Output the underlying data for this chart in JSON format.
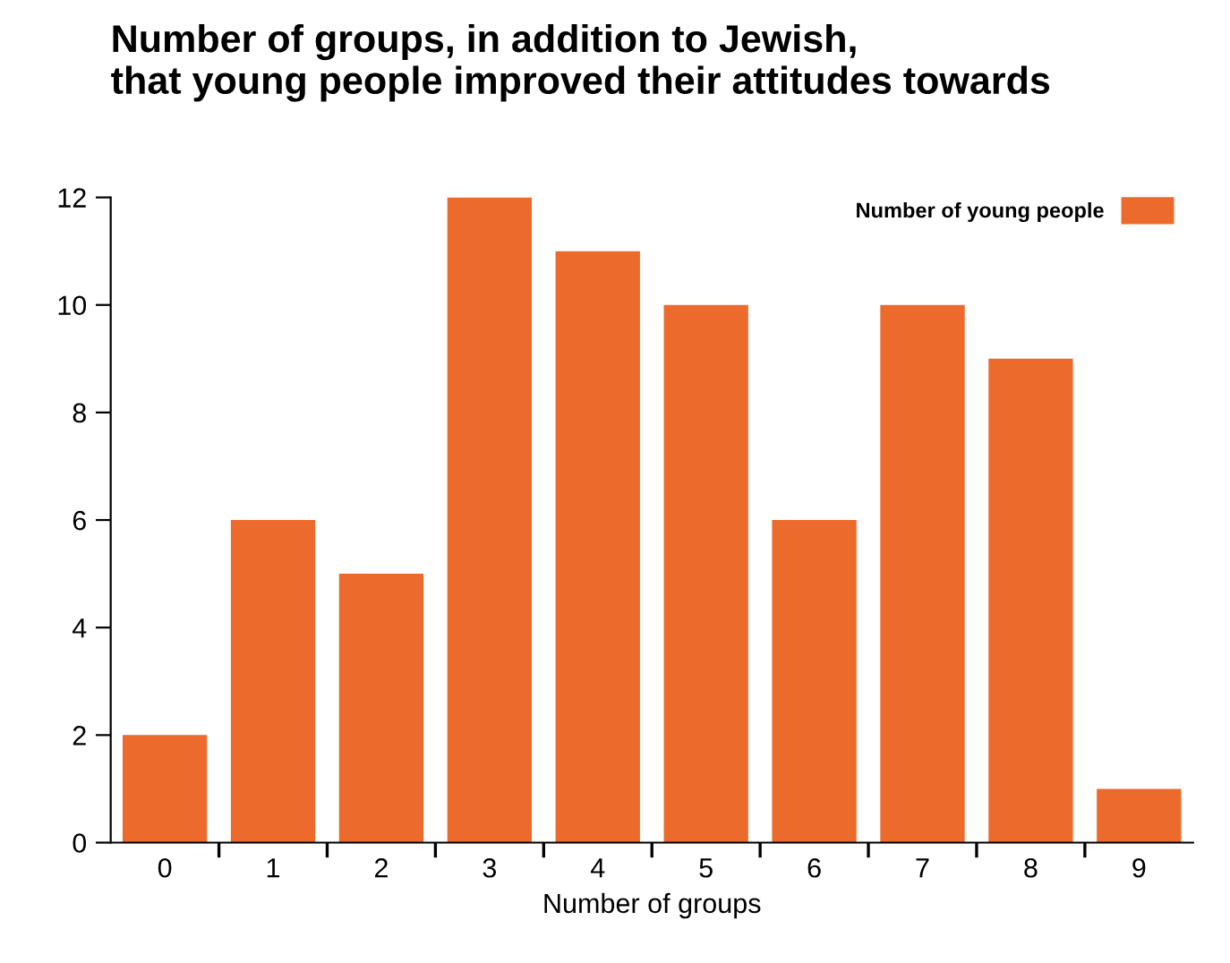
{
  "chart_data": {
    "type": "bar",
    "title": "Number of groups, in addition to Jewish,\nthat young people improved their attitudes towards",
    "xlabel": "Number of groups",
    "categories": [
      "0",
      "1",
      "2",
      "3",
      "4",
      "5",
      "6",
      "7",
      "8",
      "9"
    ],
    "series": [
      {
        "name": "Number of young people",
        "color": "#ec6a2c",
        "values": [
          2,
          6,
          5,
          12,
          11,
          10,
          6,
          10,
          9,
          1
        ]
      }
    ],
    "ylim": [
      0,
      12
    ],
    "yticks": [
      0,
      2,
      4,
      6,
      8,
      10,
      12
    ],
    "grid": false,
    "legend": "top right"
  }
}
